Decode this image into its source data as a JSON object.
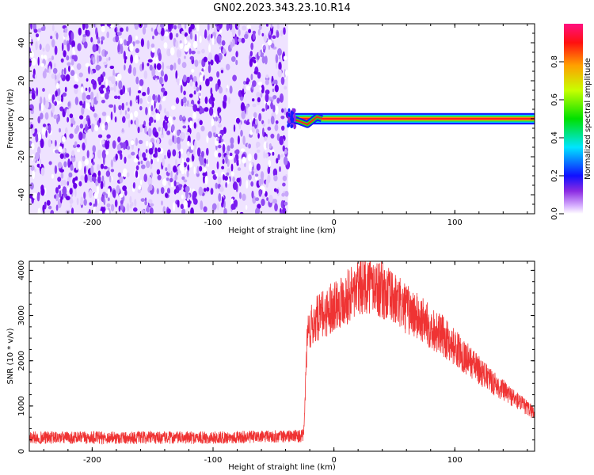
{
  "title": "GN02.2023.343.23.10.R14",
  "colors": {
    "signal": "#ef3333",
    "noise": "#6a00e8",
    "plot_background": "#ffffff",
    "axis": "#000000"
  },
  "chart_data": [
    {
      "type": "heatmap",
      "title": "GN02.2023.343.23.10.R14",
      "xlabel": "Height of straight line (km)",
      "ylabel": "Frequency (Hz)",
      "xlim": [
        -252,
        166
      ],
      "ylim": [
        -50,
        50
      ],
      "x_ticks": [
        -200,
        -100,
        0,
        100
      ],
      "x_tick_labels": [
        "-200",
        "-100",
        "0",
        "100"
      ],
      "y_ticks": [
        -40,
        -20,
        0,
        20,
        40
      ],
      "y_tick_labels": [
        "-40",
        "-20",
        "0",
        "20",
        "40"
      ],
      "noise_region_x": [
        -252,
        -38
      ],
      "signal_band": {
        "x": [
          -38,
          166
        ],
        "frequency_center": 0,
        "frequency_halfwidth": 3
      },
      "colorbar": {
        "label": "Normalized spectral amplitude",
        "range": [
          0,
          1
        ],
        "ticks": [
          0.0,
          0.2,
          0.4,
          0.6,
          0.8
        ],
        "tick_labels": [
          "0.0",
          "0.2",
          "0.4",
          "0.6",
          "0.8"
        ],
        "colormap": "rainbow"
      }
    },
    {
      "type": "line",
      "xlabel": "Height of straight line (km)",
      "ylabel": "SNR (10 * v/v)",
      "xlim": [
        -252,
        166
      ],
      "ylim": [
        0,
        4200
      ],
      "x_ticks": [
        -200,
        -100,
        0,
        100
      ],
      "x_tick_labels": [
        "-200",
        "-100",
        "0",
        "100"
      ],
      "y_ticks": [
        0,
        1000,
        2000,
        3000,
        4000
      ],
      "y_tick_labels": [
        "0",
        "1000",
        "2000",
        "3000",
        "4000"
      ],
      "series": [
        {
          "x": [
            -252,
            -230,
            -200,
            -150,
            -100,
            -60,
            -25,
            -22,
            -20,
            -15,
            -10,
            -5,
            0,
            10,
            20,
            25,
            30,
            40,
            50,
            60,
            70,
            80,
            90,
            100,
            110,
            120,
            130,
            140,
            150,
            160,
            166
          ],
          "y": [
            300,
            300,
            300,
            300,
            300,
            320,
            340,
            2600,
            2700,
            2900,
            3000,
            3100,
            3250,
            3400,
            3600,
            3700,
            3700,
            3550,
            3350,
            3150,
            2950,
            2750,
            2550,
            2300,
            2050,
            1800,
            1550,
            1350,
            1150,
            950,
            850
          ]
        }
      ]
    }
  ]
}
